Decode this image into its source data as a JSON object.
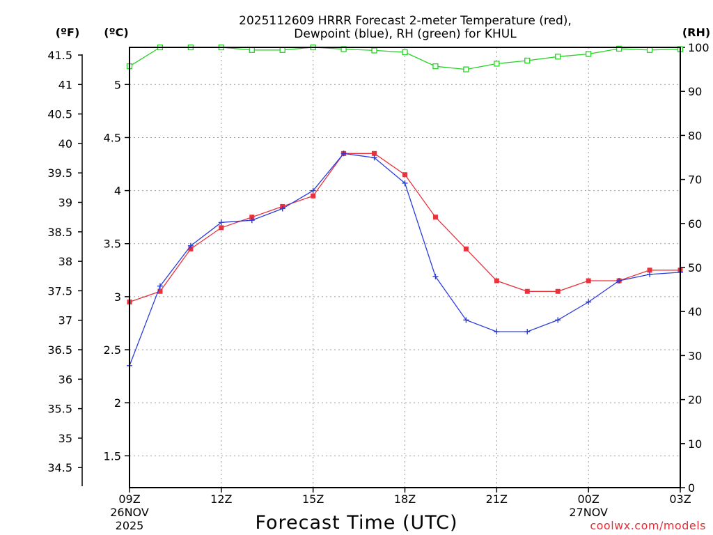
{
  "chart_data": {
    "type": "line",
    "title_line1": "2025112609 HRRR Forecast 2-meter Temperature (red),",
    "title_line2": "Dewpoint (blue), RH (green) for KHUL",
    "unit_f": "(ºF)",
    "unit_c": "(ºC)",
    "unit_rh": "(RH)",
    "xlabel": "Forecast Time (UTC)",
    "credit": "coolwx.com/models",
    "x_ticks": [
      {
        "hour": 0,
        "label": "09Z",
        "sub1": "26NOV",
        "sub2": "2025"
      },
      {
        "hour": 3,
        "label": "12Z",
        "sub1": "",
        "sub2": ""
      },
      {
        "hour": 6,
        "label": "15Z",
        "sub1": "",
        "sub2": ""
      },
      {
        "hour": 9,
        "label": "18Z",
        "sub1": "",
        "sub2": ""
      },
      {
        "hour": 12,
        "label": "21Z",
        "sub1": "",
        "sub2": ""
      },
      {
        "hour": 15,
        "label": "00Z",
        "sub1": "27NOV",
        "sub2": ""
      },
      {
        "hour": 18,
        "label": "03Z",
        "sub1": "",
        "sub2": ""
      }
    ],
    "xlim": [
      0,
      18
    ],
    "celsius_lim": [
      1.2,
      5.35
    ],
    "celsius_ticks": [
      "1.5",
      "2",
      "2.5",
      "3",
      "3.5",
      "4",
      "4.5",
      "5"
    ],
    "fahrenheit_ticks": [
      "34.5",
      "35",
      "35.5",
      "36",
      "36.5",
      "37",
      "37.5",
      "38",
      "38.5",
      "39",
      "39.5",
      "40",
      "40.5",
      "41",
      "41.5"
    ],
    "rh_lim": [
      0,
      100
    ],
    "rh_ticks": [
      "0",
      "10",
      "20",
      "30",
      "40",
      "50",
      "60",
      "70",
      "80",
      "90",
      "100"
    ],
    "series": [
      {
        "name": "Temperature",
        "axis": "celsius",
        "color": "#e8323c",
        "marker": "filled-square",
        "values": [
          2.95,
          3.05,
          3.45,
          3.65,
          3.75,
          3.85,
          3.95,
          4.35,
          4.35,
          4.15,
          3.75,
          3.45,
          3.15,
          3.05,
          3.05,
          3.15,
          3.15,
          3.25,
          3.25
        ]
      },
      {
        "name": "Dewpoint",
        "axis": "celsius",
        "color": "#2a3cdc",
        "marker": "plus",
        "values": [
          2.35,
          3.1,
          3.48,
          3.7,
          3.72,
          3.83,
          4.0,
          4.35,
          4.31,
          4.07,
          3.19,
          2.78,
          2.67,
          2.67,
          2.78,
          2.95,
          3.15,
          3.21,
          3.23
        ]
      },
      {
        "name": "RH",
        "axis": "rh",
        "color": "#22d322",
        "marker": "open-square",
        "values": [
          95.7,
          100,
          100,
          100,
          99.4,
          99.4,
          100,
          99.6,
          99.3,
          98.9,
          95.7,
          95.0,
          96.3,
          97.0,
          97.9,
          98.5,
          99.7,
          99.4,
          99.6
        ]
      }
    ]
  }
}
